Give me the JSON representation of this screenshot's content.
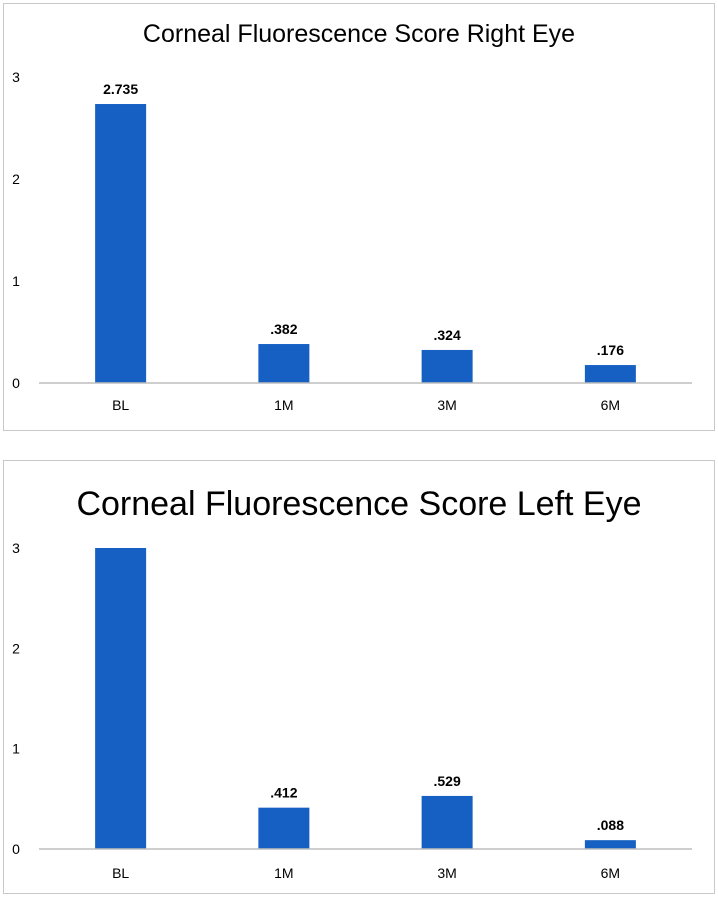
{
  "chart_data": [
    {
      "type": "bar",
      "title": "Corneal Fluorescence Score Right Eye",
      "xlabel": "",
      "ylabel": "",
      "categories": [
        "BL",
        "1M",
        "3M",
        "6M"
      ],
      "values": [
        2.735,
        0.382,
        0.324,
        0.176
      ],
      "data_labels": [
        "2.735",
        ".382",
        ".324",
        ".176"
      ],
      "yticks": [
        "0",
        "1",
        "2",
        "3"
      ],
      "ylim": [
        0,
        3
      ],
      "grid": false,
      "legend": "none",
      "bar_color": "#1560c2"
    },
    {
      "type": "bar",
      "title": "Corneal Fluorescence Score Left Eye",
      "xlabel": "",
      "ylabel": "",
      "categories": [
        "BL",
        "1M",
        "3M",
        "6M"
      ],
      "values": [
        3.0,
        0.412,
        0.529,
        0.088
      ],
      "data_labels": [
        "",
        ".412",
        ".529",
        ".088"
      ],
      "yticks": [
        "0",
        "1",
        "2",
        "3"
      ],
      "ylim": [
        0,
        3
      ],
      "grid": false,
      "legend": "none",
      "bar_color": "#1560c2"
    }
  ]
}
